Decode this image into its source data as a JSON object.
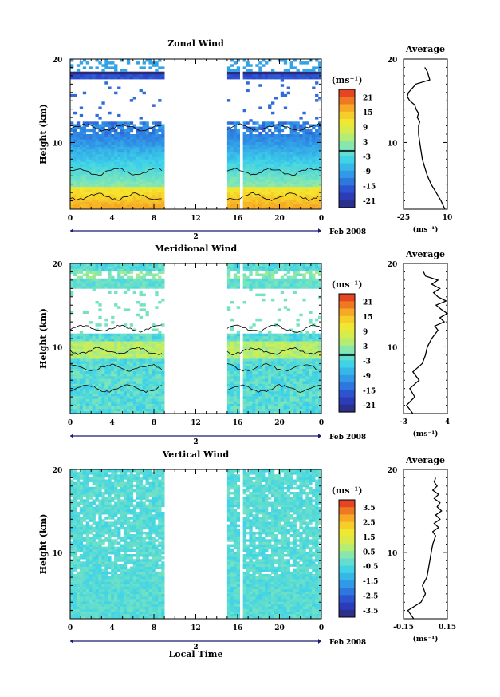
{
  "figure": {
    "xlabel": "Local Time",
    "date_label": "Feb 2008",
    "day_marker": "2",
    "height_label": "Height (km)",
    "unit_label": "(ms⁻¹)",
    "avg_title": "Average"
  },
  "chart_data": [
    {
      "type": "heatmap",
      "title": "Zonal Wind",
      "ylabel": "Height (km)",
      "xlabel": "Local Time",
      "x_ticks": [
        "0",
        "4",
        "8",
        "12",
        "16",
        "20",
        "0"
      ],
      "y_ticks": [
        "20",
        "10"
      ],
      "ylim": [
        2,
        20
      ],
      "xlim": [
        0,
        24
      ],
      "data_gap_hours": [
        8.8,
        15.0
      ],
      "colorbar": {
        "unit": "(ms⁻¹)",
        "ticks": [
          "21",
          "15",
          "9",
          "3",
          "-3",
          "-9",
          "-15",
          "-21"
        ],
        "range": [
          -24,
          24
        ]
      },
      "average_profile": {
        "title": "Average",
        "xlabel": "(ms⁻¹)",
        "x_ticks": [
          "-25",
          "10"
        ],
        "xlim": [
          -25,
          10
        ],
        "height_km": [
          2,
          3,
          4,
          5,
          6,
          7,
          8,
          9,
          10,
          11,
          12,
          12.5,
          13,
          13.5,
          14,
          14.5,
          15,
          15.5,
          16,
          16.5,
          17,
          17.5,
          18,
          18.5,
          19
        ],
        "value": [
          8,
          5,
          1,
          -3,
          -6,
          -8,
          -10,
          -11,
          -12,
          -13,
          -13,
          -12,
          -14,
          -13,
          -15,
          -16,
          -20,
          -22,
          -21,
          -18,
          -15,
          -4,
          -5,
          -6,
          -8
        ]
      }
    },
    {
      "type": "heatmap",
      "title": "Meridional Wind",
      "ylabel": "Height (km)",
      "xlabel": "Local Time",
      "x_ticks": [
        "0",
        "4",
        "8",
        "12",
        "16",
        "20",
        "0"
      ],
      "y_ticks": [
        "20",
        "10"
      ],
      "ylim": [
        2,
        20
      ],
      "xlim": [
        0,
        24
      ],
      "data_gap_hours": [
        8.8,
        15.0
      ],
      "colorbar": {
        "unit": "(ms⁻¹)",
        "ticks": [
          "21",
          "15",
          "9",
          "3",
          "-3",
          "-9",
          "-15",
          "-21"
        ],
        "range": [
          -24,
          24
        ]
      },
      "average_profile": {
        "title": "Average",
        "xlabel": "(ms⁻¹)",
        "x_ticks": [
          "-3",
          "4"
        ],
        "xlim": [
          -3,
          4
        ],
        "height_km": [
          2,
          3,
          4,
          5,
          6,
          7,
          8,
          9,
          10,
          11,
          12,
          12.5,
          13,
          13.5,
          14,
          14.5,
          15,
          15.5,
          16,
          16.5,
          17,
          17.5,
          18,
          18.5,
          19
        ],
        "value": [
          -1.5,
          -2.5,
          -1.2,
          -2,
          -0.5,
          -1.5,
          0,
          0.5,
          0.8,
          1.5,
          2.5,
          2,
          3.5,
          2.8,
          4,
          3,
          2.2,
          3.8,
          2.5,
          1.8,
          2.8,
          1.5,
          2.5,
          0.5,
          0.2
        ]
      }
    },
    {
      "type": "heatmap",
      "title": "Vertical Wind",
      "ylabel": "Height (km)",
      "xlabel": "Local Time",
      "x_ticks": [
        "0",
        "4",
        "8",
        "12",
        "16",
        "20",
        "0"
      ],
      "y_ticks": [
        "20",
        "10"
      ],
      "ylim": [
        2,
        20
      ],
      "xlim": [
        0,
        24
      ],
      "data_gap_hours": [
        8.8,
        15.0
      ],
      "colorbar": {
        "unit": "(ms⁻¹)",
        "ticks": [
          "3.5",
          "2.5",
          "1.5",
          "0.5",
          "-0.5",
          "-1.5",
          "-2.5",
          "-3.5"
        ],
        "range": [
          -4,
          4
        ]
      },
      "average_profile": {
        "title": "Average",
        "xlabel": "(ms⁻¹)",
        "x_ticks": [
          "-0.15",
          "0.15"
        ],
        "xlim": [
          -0.15,
          0.15
        ],
        "height_km": [
          2,
          3,
          4,
          5,
          6,
          7,
          8,
          9,
          10,
          11,
          12,
          12.5,
          13,
          13.5,
          14,
          14.5,
          15,
          15.5,
          16,
          16.5,
          17,
          17.5,
          18,
          18.5,
          19
        ],
        "value": [
          -0.08,
          -0.12,
          -0.03,
          0.0,
          -0.02,
          0.01,
          0.02,
          0.03,
          0.04,
          0.05,
          0.07,
          0.05,
          0.09,
          0.06,
          0.1,
          0.07,
          0.11,
          0.08,
          0.1,
          0.06,
          0.09,
          0.05,
          0.08,
          0.06,
          0.07
        ]
      }
    }
  ]
}
